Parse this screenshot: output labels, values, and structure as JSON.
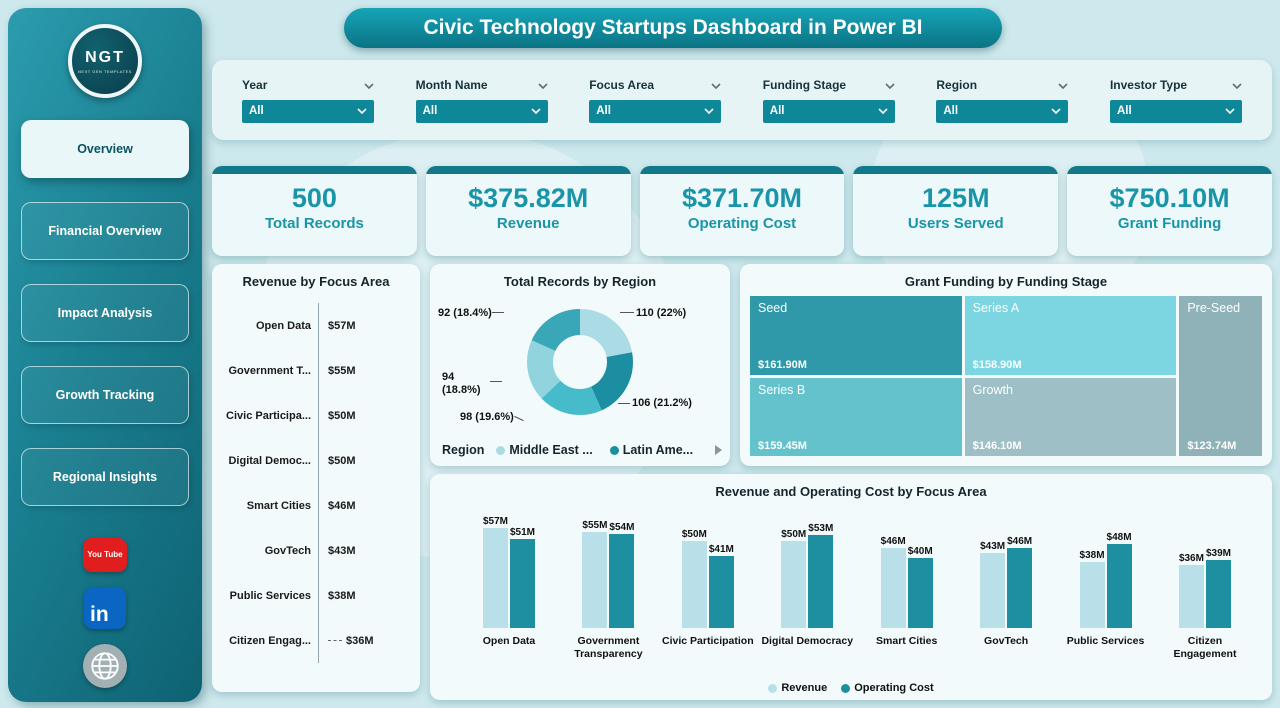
{
  "page": {
    "title": "Civic Technology Startups Dashboard in Power BI"
  },
  "sidebar": {
    "logo": {
      "text": "NGT",
      "subtext": "NEXT GEN TEMPLATES"
    },
    "items": [
      {
        "label": "Overview",
        "active": true
      },
      {
        "label": "Financial Overview",
        "active": false
      },
      {
        "label": "Impact Analysis",
        "active": false
      },
      {
        "label": "Growth Tracking",
        "active": false
      },
      {
        "label": "Regional Insights",
        "active": false
      }
    ],
    "social": [
      {
        "name": "youtube",
        "text": "You Tube",
        "color": "#e21d1d"
      },
      {
        "name": "linkedin",
        "text": "in",
        "color": "#0a66c2"
      },
      {
        "name": "website",
        "text": "",
        "color": "#a2b0b4"
      }
    ]
  },
  "filters": [
    {
      "label": "Year",
      "value": "All"
    },
    {
      "label": "Month Name",
      "value": "All"
    },
    {
      "label": "Focus Area",
      "value": "All"
    },
    {
      "label": "Funding Stage",
      "value": "All"
    },
    {
      "label": "Region",
      "value": "All"
    },
    {
      "label": "Investor Type",
      "value": "All"
    }
  ],
  "kpis": [
    {
      "value": "500",
      "label": "Total Records"
    },
    {
      "value": "$375.82M",
      "label": "Revenue"
    },
    {
      "value": "$371.70M",
      "label": "Operating Cost"
    },
    {
      "value": "125M",
      "label": "Users Served"
    },
    {
      "value": "$750.10M",
      "label": "Grant Funding"
    }
  ],
  "chart_data": [
    {
      "type": "bar",
      "orientation": "horizontal",
      "title": "Revenue by Focus Area",
      "categories": [
        "Open Data",
        "Government T...",
        "Civic Participa...",
        "Digital Democ...",
        "Smart Cities",
        "GovTech",
        "Public Services",
        "Citizen Engag..."
      ],
      "values": [
        57,
        55,
        50,
        50,
        46,
        43,
        38,
        36
      ],
      "value_labels": [
        "$57M",
        "$55M",
        "$50M",
        "$50M",
        "$46M",
        "$43M",
        "$38M",
        "$36M"
      ]
    },
    {
      "type": "pie",
      "title": "Total Records by Region",
      "values": [
        110,
        106,
        98,
        94,
        92
      ],
      "colors": [
        "#abdce6",
        "#1b8fa1",
        "#46bccb",
        "#92d4dd",
        "#39a7b8"
      ],
      "callouts": [
        "110 (22%)",
        "106 (21.2%)",
        "98 (19.6%)",
        "94 (18.8%)",
        "92 (18.4%)"
      ],
      "legend_title": "Region",
      "legend": [
        {
          "label": "Middle East ...",
          "color": "#abdce6"
        },
        {
          "label": "Latin Ame...",
          "color": "#1b8fa1"
        }
      ]
    },
    {
      "type": "treemap",
      "title": "Grant Funding by Funding Stage",
      "items": [
        {
          "name": "Seed",
          "value": "$161.90M",
          "color": "#2f99aa"
        },
        {
          "name": "Series A",
          "value": "$158.90M",
          "color": "#7bd6e2"
        },
        {
          "name": "Pre-Seed",
          "value": "$123.74M",
          "color": "#8fb2b8"
        },
        {
          "name": "Series B",
          "value": "$159.45M",
          "color": "#63c2cc"
        },
        {
          "name": "Growth",
          "value": "$146.10M",
          "color": "#9dbfc5"
        }
      ]
    },
    {
      "type": "bar",
      "title": "Revenue and Operating Cost by Focus Area",
      "categories": [
        "Open Data",
        "Government Transparency",
        "Civic Participation",
        "Digital Democracy",
        "Smart Cities",
        "GovTech",
        "Public Services",
        "Citizen Engagement"
      ],
      "series": [
        {
          "name": "Revenue",
          "color": "#b9dfe9",
          "values": [
            57,
            55,
            50,
            50,
            46,
            43,
            38,
            36
          ],
          "labels": [
            "$57M",
            "$55M",
            "$50M",
            "$50M",
            "$46M",
            "$43M",
            "$38M",
            "$36M"
          ]
        },
        {
          "name": "Operating Cost",
          "color": "#1d8fa0",
          "values": [
            51,
            54,
            41,
            53,
            40,
            46,
            48,
            39
          ],
          "labels": [
            "$51M",
            "$54M",
            "$41M",
            "$53M",
            "$40M",
            "$46M",
            "$48M",
            "$39M"
          ]
        }
      ],
      "ylim": [
        0,
        60
      ]
    }
  ]
}
